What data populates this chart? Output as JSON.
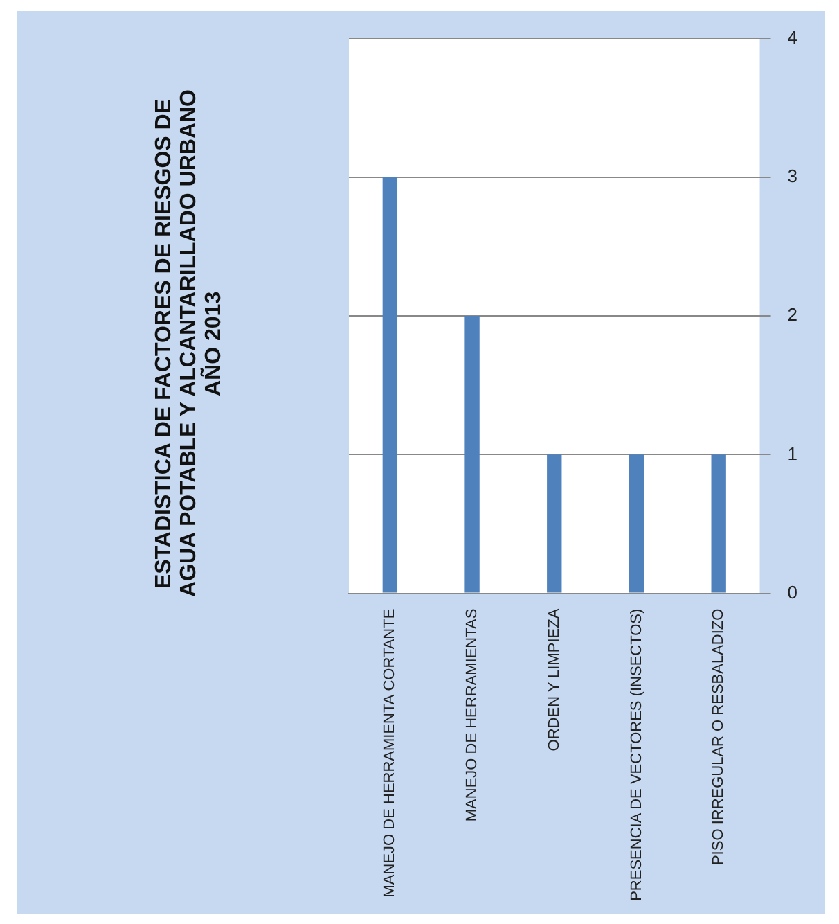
{
  "chart_data": {
    "type": "bar",
    "title": "ESTADISTICA DE FACTORES DE RIESGOS DE AGUA POTABLE Y ALCANTARILLADO URBANO AÑO 2013",
    "categories": [
      "MANEJO DE HERRAMIENTA CORTANTE",
      "MANEJO DE HERRAMIENTAS",
      "ORDEN Y LIMPIEZA",
      "PRESENCIA DE VECTORES (INSECTOS)",
      "PISO IRREGULAR O RESBALADIZO"
    ],
    "values": [
      3,
      2,
      1,
      1,
      1
    ],
    "color": "#4f81bd",
    "ylim": [
      0,
      4
    ],
    "yticks": [
      0,
      1,
      2,
      3,
      4
    ],
    "grid": "y",
    "legend": false
  }
}
